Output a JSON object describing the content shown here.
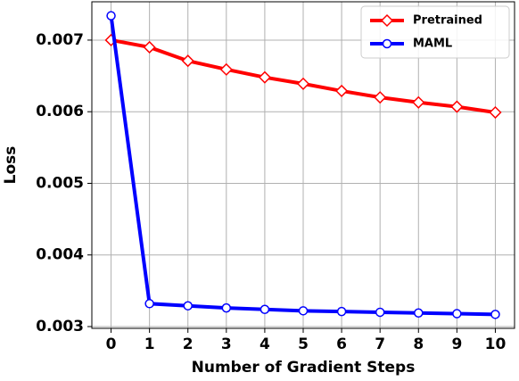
{
  "chart_data": {
    "type": "line",
    "x_label": "Number of Gradient Steps",
    "y_label": "Loss",
    "x": [
      0,
      1,
      2,
      3,
      4,
      5,
      6,
      7,
      8,
      9,
      10
    ],
    "series": [
      {
        "name": "Pretrained",
        "color": "#ff0000",
        "marker": "diamond",
        "values": [
          0.007,
          0.0069,
          0.00671,
          0.00659,
          0.00648,
          0.00639,
          0.00629,
          0.0062,
          0.00613,
          0.00607,
          0.00599
        ]
      },
      {
        "name": "MAML",
        "color": "#0000ff",
        "marker": "circle",
        "values": [
          0.00734,
          0.00332,
          0.00329,
          0.00326,
          0.00324,
          0.00322,
          0.00321,
          0.0032,
          0.00319,
          0.00318,
          0.00317
        ]
      }
    ],
    "xlim": [
      -0.5,
      10.5
    ],
    "ylim": [
      0.002975,
      0.007535
    ],
    "xticks": [
      0,
      1,
      2,
      3,
      4,
      5,
      6,
      7,
      8,
      9,
      10
    ],
    "yticks": [
      0.003,
      0.004,
      0.005,
      0.006,
      0.007
    ],
    "grid": true,
    "legend": "upper right"
  }
}
